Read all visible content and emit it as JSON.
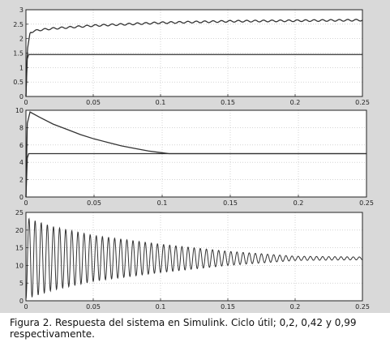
{
  "caption": "Figura 2. Respuesta del sistema en Simulink. Ciclo útil; 0,2, 0,42 y 0,99 respectivamente.",
  "colors": {
    "figure_background": "#d9d9d9",
    "axes_background": "#ffffff",
    "trace": "#333333",
    "grid": "#bbbbbb"
  },
  "chart_data": [
    {
      "type": "line",
      "title": "",
      "xlabel": "",
      "ylabel": "",
      "grid": true,
      "xlim": [
        0,
        0.25
      ],
      "ylim": [
        0,
        3
      ],
      "xticks": [
        "0",
        "0.05",
        "0.1",
        "0.15",
        "0.2",
        "0.25"
      ],
      "yticks": [
        "0",
        "0.5",
        "1",
        "1.5",
        "2",
        "2.5",
        "3"
      ],
      "series": [
        {
          "x": [
            0,
            0.001,
            0.003,
            0.005,
            0.01,
            0.02,
            0.05,
            0.1,
            0.15,
            0.2,
            0.25
          ],
          "values": [
            0,
            1.6,
            2.2,
            2.25,
            2.3,
            2.35,
            2.45,
            2.55,
            2.6,
            2.62,
            2.64
          ],
          "ripple": 0.03
        },
        {
          "x": [
            0,
            0.001,
            0.002,
            0.25
          ],
          "values": [
            0,
            1.3,
            1.45,
            1.45
          ]
        }
      ]
    },
    {
      "type": "line",
      "title": "",
      "xlabel": "",
      "ylabel": "",
      "grid": true,
      "xlim": [
        0,
        0.25
      ],
      "ylim": [
        0,
        10
      ],
      "xticks": [
        "0",
        "0.05",
        "0.1",
        "0.15",
        "0.2",
        "0.25"
      ],
      "yticks": [
        "0",
        "2",
        "4",
        "6",
        "8",
        "10"
      ],
      "series": [
        {
          "x": [
            0,
            0.001,
            0.003,
            0.01,
            0.02,
            0.03,
            0.04,
            0.05,
            0.06,
            0.07,
            0.08,
            0.09,
            0.1,
            0.105,
            0.11,
            0.15,
            0.2,
            0.25
          ],
          "values": [
            0,
            8.5,
            9.8,
            9.2,
            8.4,
            7.8,
            7.2,
            6.7,
            6.3,
            5.9,
            5.6,
            5.3,
            5.1,
            5.0,
            5.0,
            5.0,
            5.0,
            5.0
          ]
        },
        {
          "x": [
            0,
            0.001,
            0.002,
            0.25
          ],
          "values": [
            0,
            4.5,
            5.0,
            5.0
          ]
        }
      ]
    },
    {
      "type": "line",
      "title": "",
      "xlabel": "",
      "ylabel": "",
      "grid": true,
      "xlim": [
        0,
        0.25
      ],
      "ylim": [
        0,
        25
      ],
      "xticks": [
        "0",
        "0.05",
        "0.1",
        "0.15",
        "0.2",
        "0.25"
      ],
      "yticks": [
        "0",
        "5",
        "10",
        "15",
        "20",
        "25"
      ],
      "series": [
        {
          "x": [
            0,
            0.02,
            0.05,
            0.1,
            0.15,
            0.2,
            0.25
          ],
          "center": [
            12,
            12,
            12,
            12,
            12,
            12,
            12
          ],
          "amplitude": [
            11.5,
            9,
            6.5,
            4,
            2,
            0.6,
            0.4
          ],
          "frequency": 220
        }
      ]
    }
  ]
}
